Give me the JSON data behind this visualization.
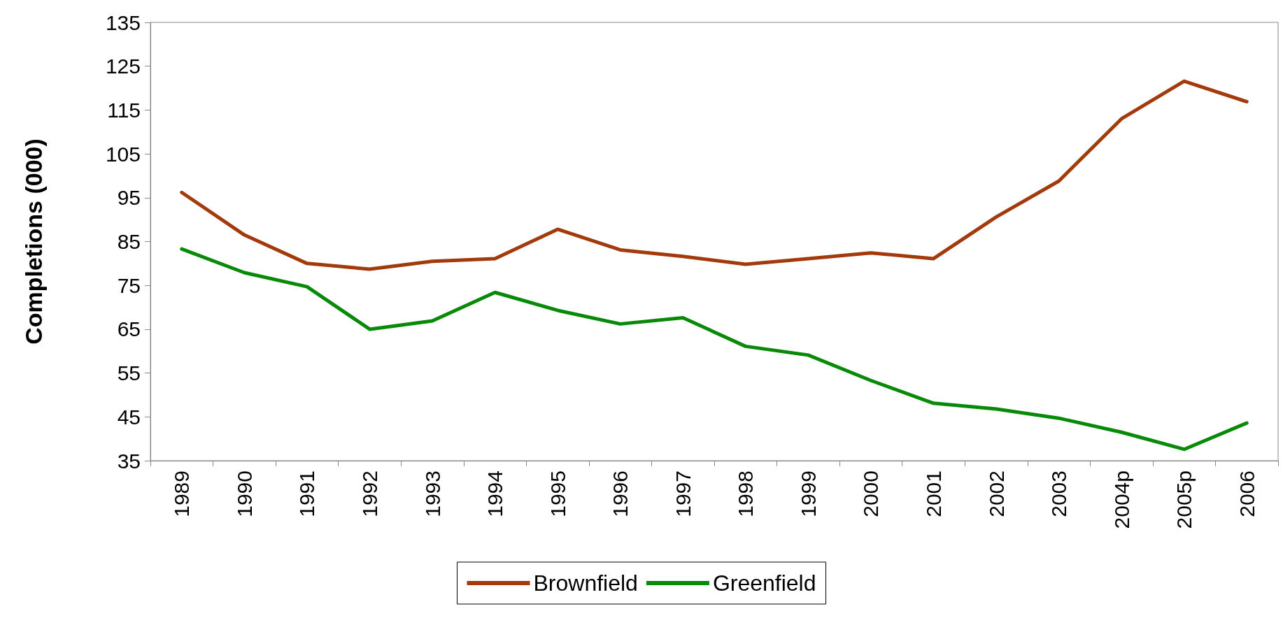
{
  "chart_data": {
    "type": "line",
    "ylabel": "Completions (000)",
    "categories": [
      "1989",
      "1990",
      "1991",
      "1992",
      "1993",
      "1994",
      "1995",
      "1996",
      "1997",
      "1998",
      "1999",
      "2000",
      "2001",
      "2002",
      "2003",
      "2004p",
      "2005p",
      "2006"
    ],
    "series": [
      {
        "name": "Brownfield",
        "color": "#a33a0b",
        "values": [
          96.2,
          86.5,
          80,
          78.7,
          80.5,
          81.1,
          87.8,
          83.1,
          81.6,
          79.8,
          81.1,
          82.4,
          81.1,
          90.6,
          98.8,
          113,
          121.6,
          116.9
        ]
      },
      {
        "name": "Greenfield",
        "color": "#088a08",
        "values": [
          83.3,
          77.9,
          74.7,
          65,
          66.9,
          73.4,
          69.3,
          66.2,
          67.6,
          61.1,
          59.1,
          53.3,
          48.1,
          46.8,
          44.7,
          41.5,
          37.6,
          43.6
        ]
      }
    ],
    "ylim": [
      35,
      135
    ],
    "yticks": [
      35,
      45,
      55,
      65,
      75,
      85,
      95,
      105,
      115,
      125,
      135
    ],
    "grid": false,
    "legend": "bottom",
    "marker": "none",
    "line_style": "solid"
  }
}
